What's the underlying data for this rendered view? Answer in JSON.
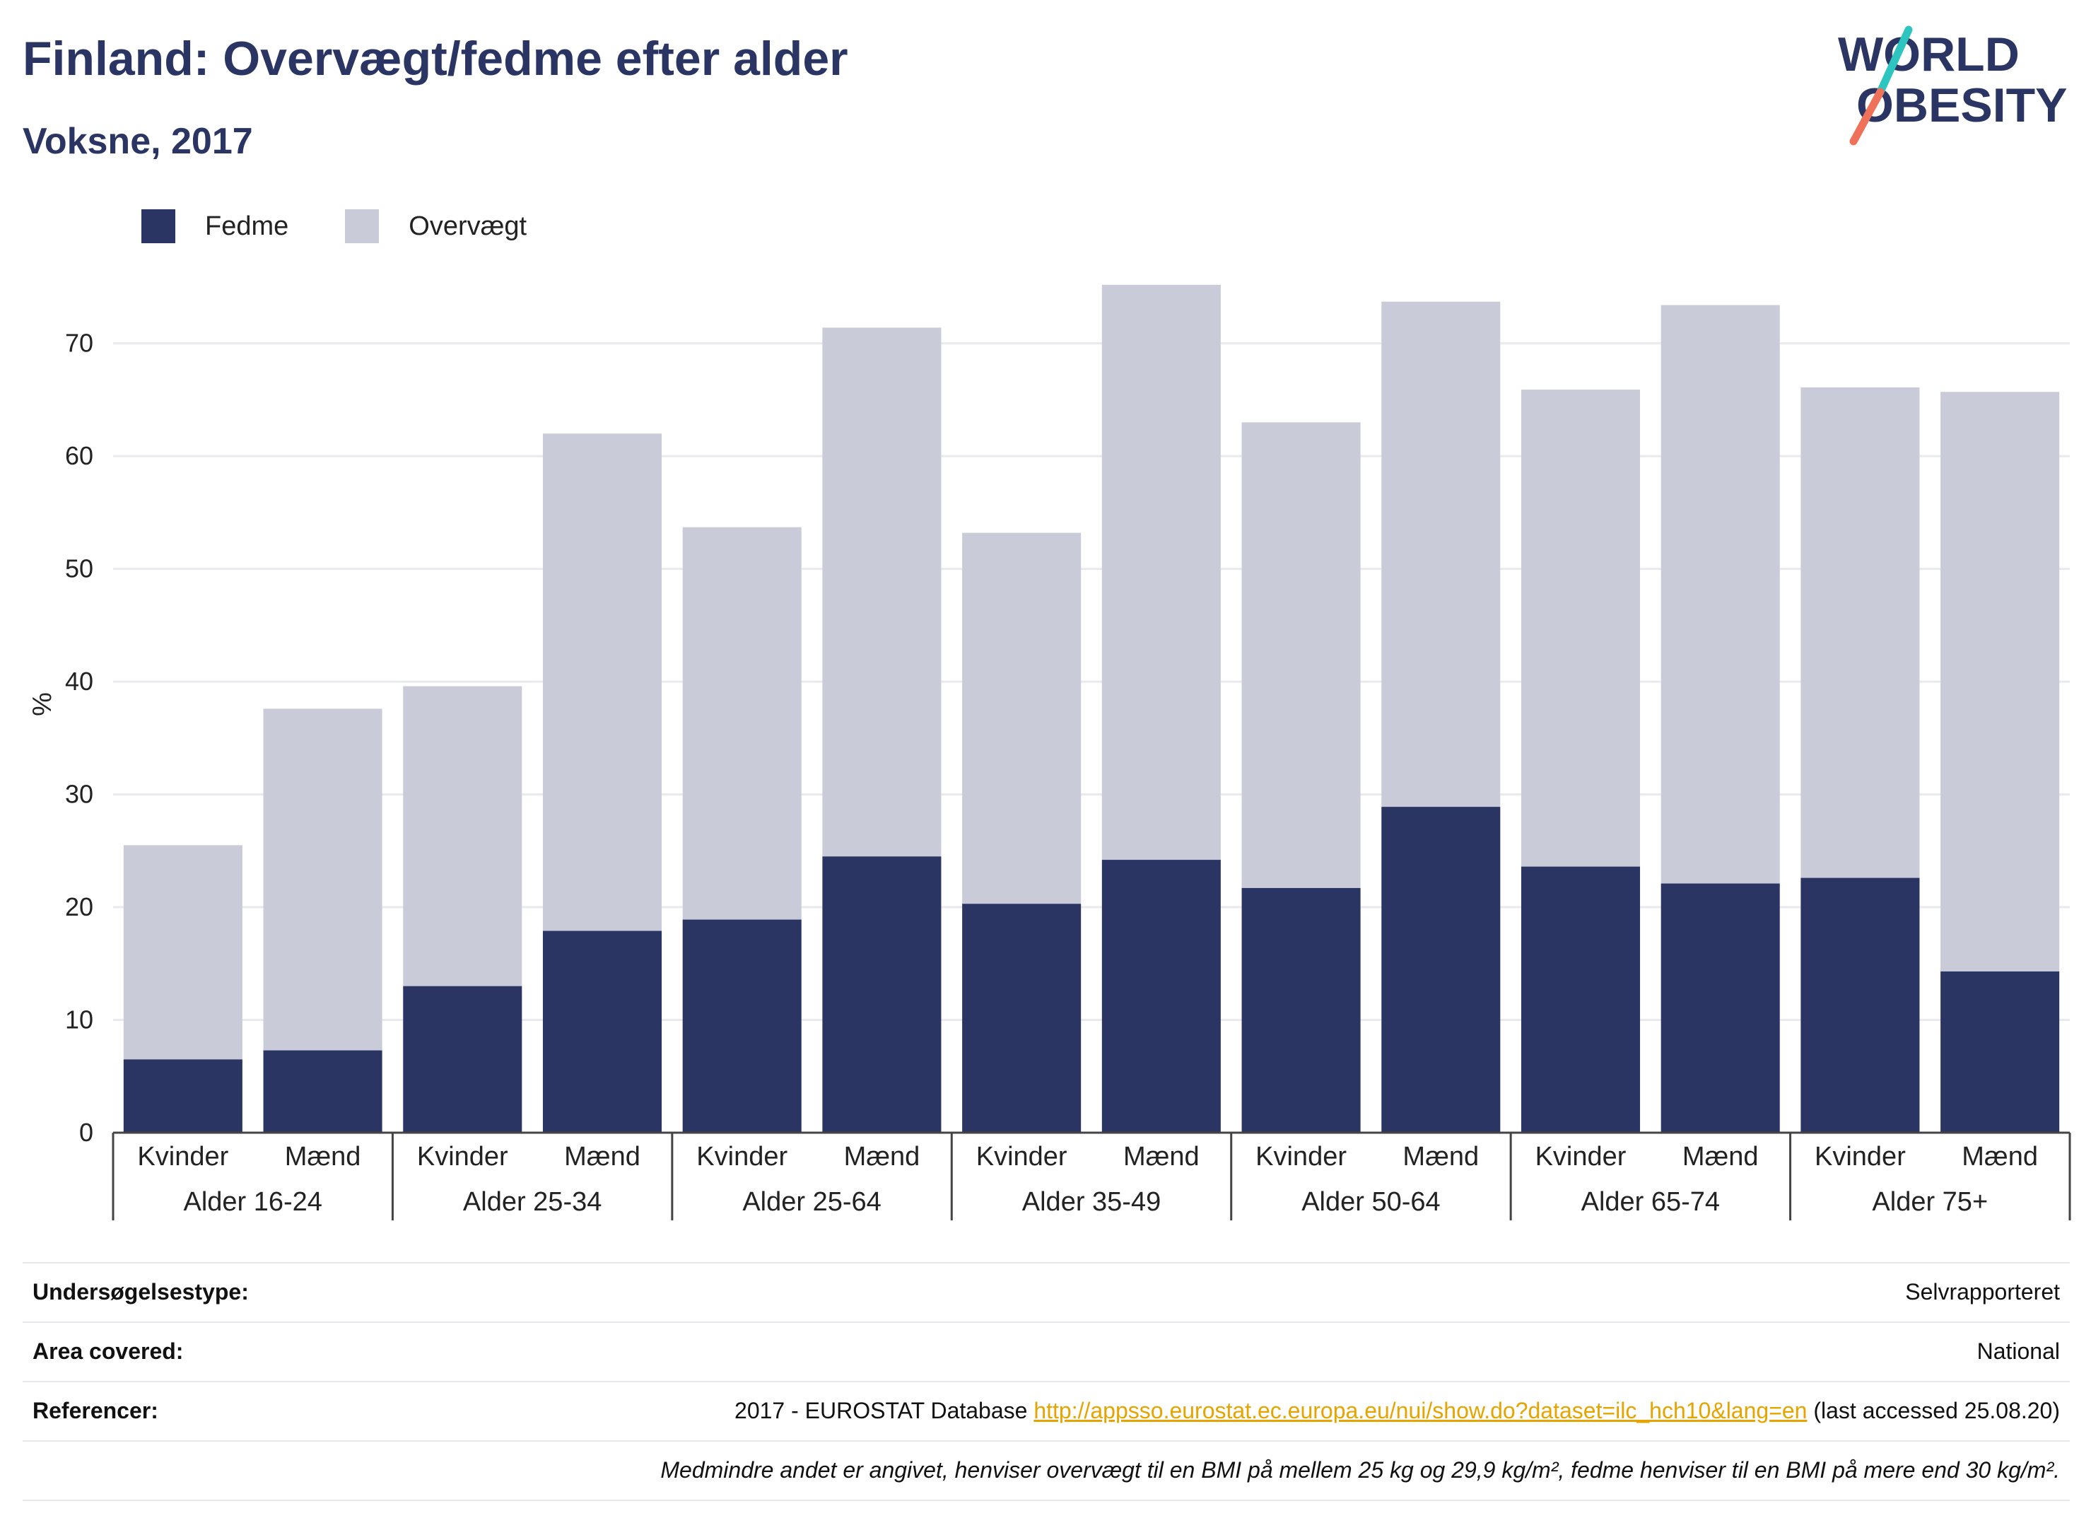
{
  "header": {
    "title": "Finland: Overvægt/fedme efter alder",
    "subtitle": "Voksne, 2017",
    "logo_line1": "WORLD",
    "logo_line2": "OBESITY"
  },
  "colors": {
    "fedme": "#2a3563",
    "overvaegt": "#c9ccd8",
    "text": "#2a3563",
    "link": "#e6a400",
    "logo_teal": "#2ec4c0",
    "logo_coral": "#f0715a"
  },
  "chart_data": {
    "type": "bar",
    "stacked": true,
    "ylabel": "%",
    "ylim": [
      0,
      76
    ],
    "yticks": [
      0,
      10,
      20,
      30,
      40,
      50,
      60,
      70
    ],
    "grid": true,
    "legend_position": "top-left",
    "groups": [
      "Alder 16-24",
      "Alder 25-34",
      "Alder 25-64",
      "Alder 35-49",
      "Alder 50-64",
      "Alder 65-74",
      "Alder 75+"
    ],
    "subcategories": [
      "Kvinder",
      "Mænd"
    ],
    "categories": [
      "Kvinder",
      "Mænd",
      "Kvinder",
      "Mænd",
      "Kvinder",
      "Mænd",
      "Kvinder",
      "Mænd",
      "Kvinder",
      "Mænd",
      "Kvinder",
      "Mænd",
      "Kvinder",
      "Mænd"
    ],
    "series": [
      {
        "name": "Fedme",
        "values": [
          6.5,
          7.3,
          13.0,
          17.9,
          18.9,
          24.5,
          20.3,
          24.2,
          21.7,
          28.9,
          23.6,
          22.1,
          22.6,
          14.3
        ]
      },
      {
        "name": "Overvægt",
        "values": [
          19.0,
          30.3,
          26.6,
          44.1,
          34.8,
          46.9,
          32.9,
          51.0,
          41.3,
          44.8,
          42.3,
          51.3,
          43.5,
          51.4
        ]
      }
    ]
  },
  "meta": {
    "survey_label": "Undersøgelsestype:",
    "survey_value": "Selvrapporteret",
    "area_label": "Area covered:",
    "area_value": "National",
    "ref_label": "Referencer:",
    "ref_prefix": "2017 - EUROSTAT Database ",
    "ref_link": "http://appsso.eurostat.ec.europa.eu/nui/show.do?dataset=ilc_hch10&lang=en",
    "ref_suffix": " (last accessed 25.08.20)",
    "note": "Medmindre andet er angivet, henviser overvægt til en BMI på mellem 25 kg og 29,9 kg/m², fedme henviser til en BMI på mere end 30 kg/m²."
  }
}
